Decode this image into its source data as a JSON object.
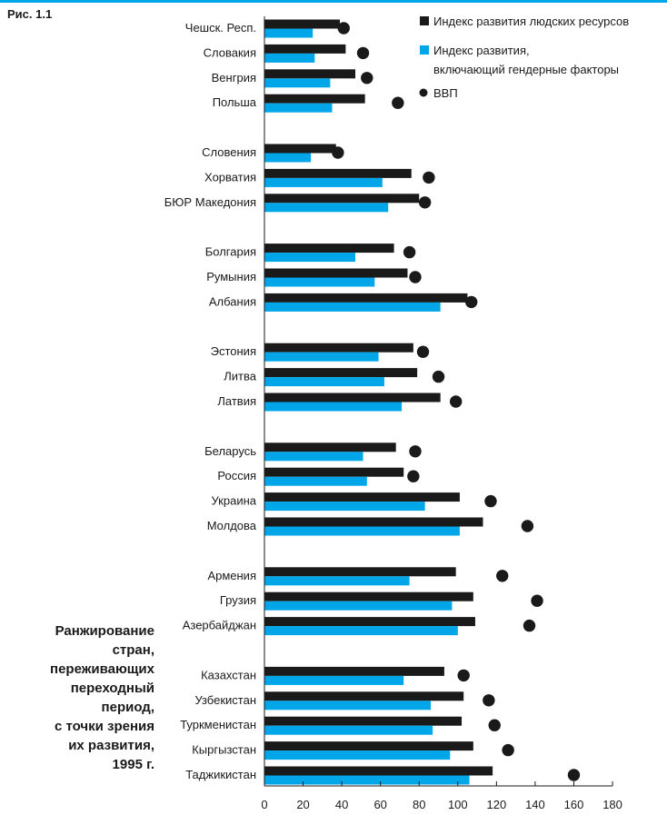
{
  "figure_label": "Рис. 1.1",
  "caption": "Ранжирование\nстран,\nпереживающих\nпереходный\nпериод,\nс точки зрения\nих развития,\n1995 г.",
  "colors": {
    "hdi": "#1a1a1a",
    "gdi": "#00a6e8",
    "gdp": "#1a1a1a",
    "rule": "#00a6e8"
  },
  "chart_data": {
    "type": "bar",
    "orientation": "horizontal",
    "xlim": [
      0,
      180
    ],
    "xticks": [
      0,
      20,
      40,
      60,
      80,
      100,
      120,
      140,
      160,
      180
    ],
    "grid": false,
    "legend_position": "top-right",
    "groups": [
      [
        "Чешск. Респ.",
        "Словакия",
        "Венгрия",
        "Польша"
      ],
      [
        "Словения",
        "Хорватия",
        "БЮР Македония"
      ],
      [
        "Болгария",
        "Румыния",
        "Албания"
      ],
      [
        "Эстония",
        "Литва",
        "Латвия"
      ],
      [
        "Беларусь",
        "Россия",
        "Украина",
        "Молдова"
      ],
      [
        "Армения",
        "Грузия",
        "Азербайджан"
      ],
      [
        "Казахстан",
        "Узбекистан",
        "Туркменистан",
        "Кыргызстан",
        "Таджикистан"
      ]
    ],
    "categories": [
      "Чешск. Респ.",
      "Словакия",
      "Венгрия",
      "Польша",
      "Словения",
      "Хорватия",
      "БЮР Македония",
      "Болгария",
      "Румыния",
      "Албания",
      "Эстония",
      "Литва",
      "Латвия",
      "Беларусь",
      "Россия",
      "Украина",
      "Молдова",
      "Армения",
      "Грузия",
      "Азербайджан",
      "Казахстан",
      "Узбекистан",
      "Туркменистан",
      "Кыргызстан",
      "Таджикистан"
    ],
    "series": [
      {
        "name": "Индекс развития людских ресурсов",
        "mark": "bar",
        "values": [
          39,
          42,
          47,
          52,
          37,
          76,
          80,
          67,
          74,
          105,
          77,
          79,
          91,
          68,
          72,
          101,
          113,
          99,
          108,
          109,
          93,
          103,
          102,
          108,
          118
        ]
      },
      {
        "name": "Индекс развития,\nвключающий гендерные факторы",
        "mark": "bar",
        "values": [
          25,
          26,
          34,
          35,
          24,
          61,
          64,
          47,
          57,
          91,
          59,
          62,
          71,
          51,
          53,
          83,
          101,
          75,
          97,
          100,
          72,
          86,
          87,
          96,
          106
        ]
      },
      {
        "name": "ВВП",
        "mark": "dot",
        "values": [
          41,
          51,
          53,
          69,
          38,
          85,
          83,
          75,
          78,
          107,
          82,
          90,
          99,
          78,
          77,
          117,
          136,
          123,
          141,
          137,
          103,
          116,
          119,
          126,
          160
        ]
      }
    ]
  }
}
